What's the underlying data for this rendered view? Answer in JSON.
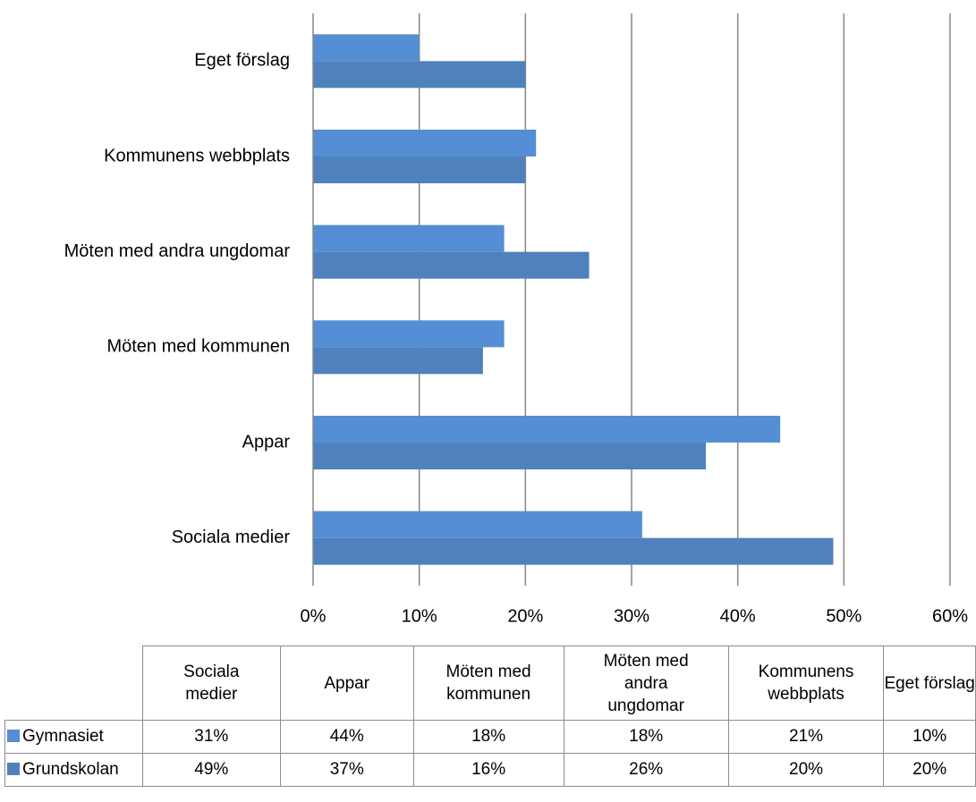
{
  "chart_data": {
    "type": "bar",
    "orientation": "horizontal",
    "categories": [
      "Sociala medier",
      "Appar",
      "Möten med kommunen",
      "Möten med andra ungdomar",
      "Kommunens webbplats",
      "Eget förslag"
    ],
    "series": [
      {
        "name": "Gymnasiet",
        "color": "#558ed5",
        "values": [
          31,
          44,
          18,
          18,
          21,
          10
        ],
        "value_labels": [
          "31%",
          "44%",
          "18%",
          "18%",
          "21%",
          "10%"
        ]
      },
      {
        "name": "Grundskolan",
        "color": "#4f81bd",
        "values": [
          49,
          37,
          16,
          26,
          20,
          20
        ],
        "value_labels": [
          "49%",
          "37%",
          "16%",
          "26%",
          "20%",
          "20%"
        ]
      }
    ],
    "xlim": [
      0,
      60
    ],
    "xticks": [
      {
        "value": 0,
        "label": "0%"
      },
      {
        "value": 10,
        "label": "10%"
      },
      {
        "value": 20,
        "label": "20%"
      },
      {
        "value": 30,
        "label": "30%"
      },
      {
        "value": 40,
        "label": "40%"
      },
      {
        "value": 50,
        "label": "50%"
      },
      {
        "value": 60,
        "label": "60%"
      }
    ],
    "grid": true
  }
}
